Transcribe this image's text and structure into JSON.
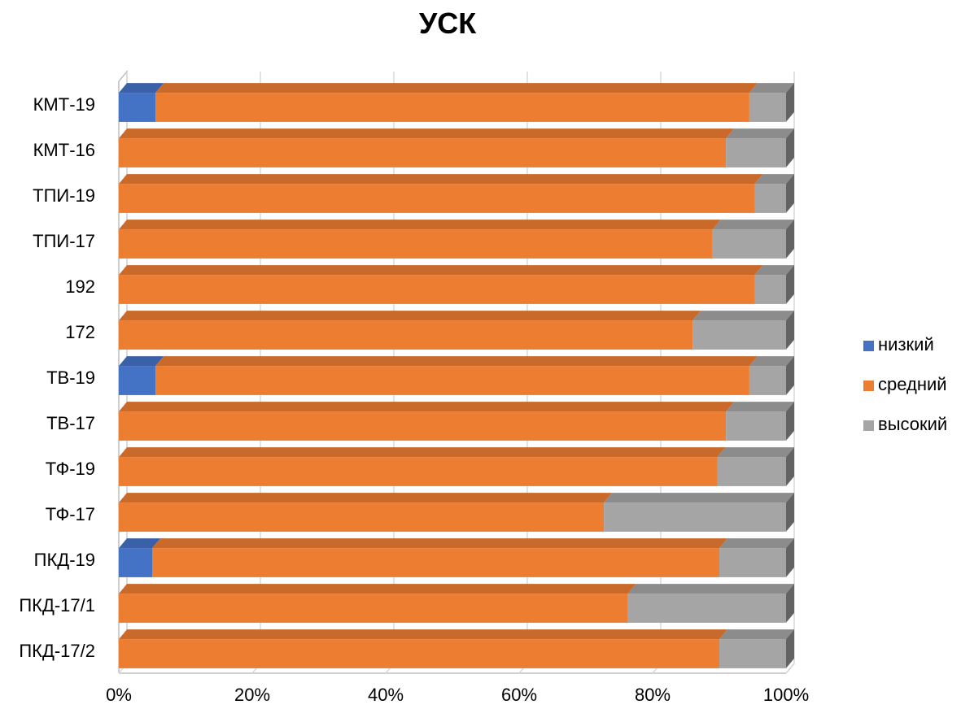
{
  "chart_data": {
    "type": "bar",
    "orientation": "horizontal",
    "stacked": "percent",
    "three_d": true,
    "title": "УСК",
    "categories": [
      "КМТ-19",
      "КМТ-16",
      "ТПИ-19",
      "ТПИ-17",
      "192",
      "172",
      "ТВ-19",
      "ТВ-17",
      "ТФ-19",
      "ТФ-17",
      "ПКД-19",
      "ПКД-17/1",
      "ПКД-17/2"
    ],
    "series": [
      {
        "name": "низкий",
        "color": "#4472C4",
        "values": [
          5.5,
          0,
          0,
          0,
          0,
          0,
          5.5,
          0,
          0,
          0,
          5,
          0,
          0
        ]
      },
      {
        "name": "средний",
        "color": "#ED7D31",
        "values": [
          89,
          91,
          95.3,
          89,
          95.3,
          86,
          89,
          91,
          89.7,
          72.7,
          85,
          76.3,
          90
        ]
      },
      {
        "name": "высокий",
        "color": "#A5A5A5",
        "values": [
          5.5,
          9,
          4.7,
          11,
          4.7,
          14,
          5.5,
          9,
          10.3,
          27.3,
          10,
          23.7,
          10
        ]
      }
    ],
    "x_ticks": [
      "0%",
      "20%",
      "40%",
      "60%",
      "80%",
      "100%"
    ],
    "xlim": [
      0,
      100
    ],
    "grid": true,
    "legend_position": "right"
  }
}
